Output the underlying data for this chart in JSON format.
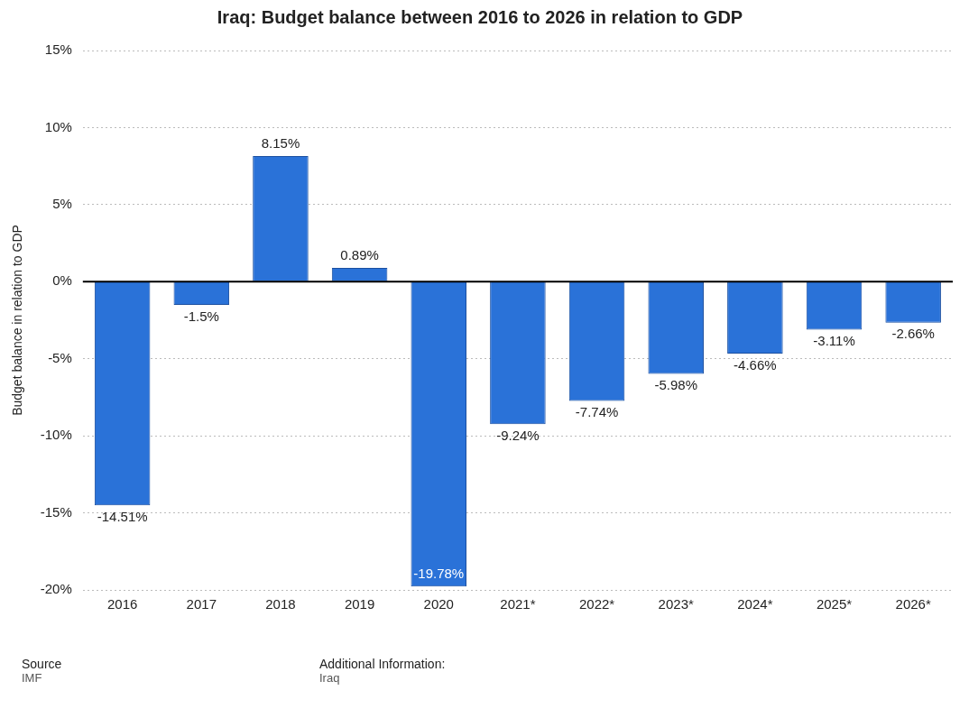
{
  "chart_data": {
    "type": "bar",
    "title": "Iraq: Budget balance between 2016 to 2026 in relation to GDP",
    "ylabel": "Budget balance in relation to GDP",
    "categories": [
      "2016",
      "2017",
      "2018",
      "2019",
      "2020",
      "2021*",
      "2022*",
      "2023*",
      "2024*",
      "2025*",
      "2026*"
    ],
    "values": [
      -14.51,
      -1.5,
      8.15,
      0.89,
      -19.78,
      -9.24,
      -7.74,
      -5.98,
      -4.66,
      -3.11,
      -2.66
    ],
    "value_labels": [
      "-14.51%",
      "-1.5%",
      "8.15%",
      "0.89%",
      "-19.78%",
      "-9.24%",
      "-7.74%",
      "-5.98%",
      "-4.66%",
      "-3.11%",
      "-2.66%"
    ],
    "color": "#2a72d8",
    "ylim": [
      -20,
      15
    ],
    "yticks": [
      {
        "value": -20,
        "label": "-20%"
      },
      {
        "value": -15,
        "label": "-15%"
      },
      {
        "value": -10,
        "label": "-10%"
      },
      {
        "value": -5,
        "label": "-5%"
      },
      {
        "value": 0,
        "label": "0%"
      },
      {
        "value": 5,
        "label": "5%"
      },
      {
        "value": 10,
        "label": "10%"
      },
      {
        "value": 15,
        "label": "15%"
      }
    ],
    "grid": "y",
    "legend": false,
    "ref_lines": [
      {
        "axis": "y",
        "value": 0,
        "color": "#000000"
      }
    ],
    "annotations": [
      "Source",
      "IMF",
      "Additional Information:",
      "Iraq"
    ]
  }
}
